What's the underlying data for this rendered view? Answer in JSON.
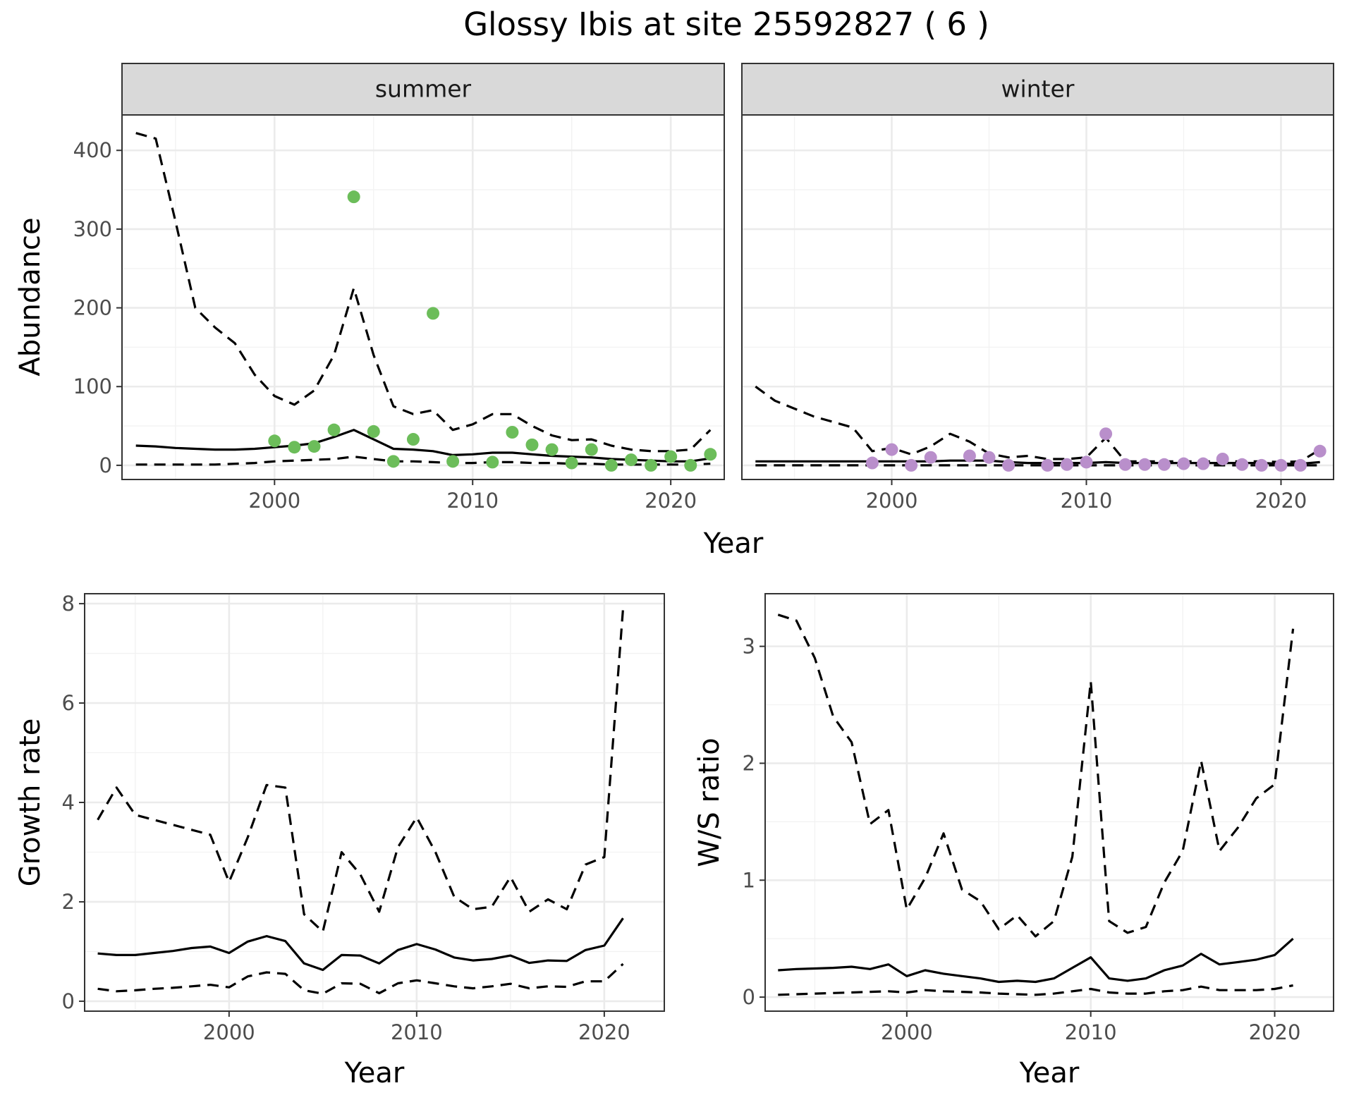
{
  "title": "Glossy Ibis at site 25592827 ( 6 )",
  "colors": {
    "summer": "#6cbd5a",
    "winter": "#b98fcb"
  },
  "chart_data": [
    {
      "type": "line",
      "panel": "summer",
      "strip": "summer",
      "xlabel": "",
      "ylabel": "Abundance",
      "xlim": [
        1992.3,
        2022.7
      ],
      "ylim": [
        -18,
        445
      ],
      "xticks": [
        2000,
        2010,
        2020
      ],
      "yticks": [
        0,
        100,
        200,
        300,
        400
      ],
      "grid": true,
      "series": [
        {
          "style": "solid",
          "x": [
            1993,
            1994,
            1995,
            1996,
            1997,
            1998,
            1999,
            2000,
            2001,
            2002,
            2003,
            2004,
            2005,
            2006,
            2007,
            2008,
            2009,
            2010,
            2011,
            2012,
            2013,
            2014,
            2015,
            2016,
            2017,
            2018,
            2019,
            2020,
            2021,
            2022
          ],
          "y": [
            25,
            24,
            22,
            21,
            20,
            20,
            21,
            23,
            25,
            28,
            36,
            45,
            33,
            21,
            20,
            18,
            13,
            14,
            16,
            16,
            14,
            12,
            11,
            10,
            8,
            7,
            6,
            5,
            5,
            9
          ]
        },
        {
          "style": "dashed",
          "x": [
            1993,
            1994,
            1995,
            1996,
            1997,
            1998,
            1999,
            2000,
            2001,
            2002,
            2003,
            2004,
            2005,
            2006,
            2007,
            2008,
            2009,
            2010,
            2011,
            2012,
            2013,
            2014,
            2015,
            2016,
            2017,
            2018,
            2019,
            2020,
            2021,
            2022
          ],
          "y": [
            422,
            415,
            310,
            200,
            175,
            155,
            115,
            88,
            77,
            95,
            140,
            225,
            140,
            75,
            65,
            70,
            45,
            52,
            65,
            65,
            50,
            38,
            32,
            33,
            25,
            20,
            18,
            18,
            20,
            45
          ]
        },
        {
          "style": "dashed",
          "x": [
            1993,
            1994,
            1995,
            1996,
            1997,
            1998,
            1999,
            2000,
            2001,
            2002,
            2003,
            2004,
            2005,
            2006,
            2007,
            2008,
            2009,
            2010,
            2011,
            2012,
            2013,
            2014,
            2015,
            2016,
            2017,
            2018,
            2019,
            2020,
            2021,
            2022
          ],
          "y": [
            1,
            1,
            1,
            1,
            1,
            2,
            3,
            5,
            6,
            7,
            8,
            11,
            8,
            5,
            5,
            4,
            3,
            3,
            4,
            4,
            3,
            3,
            2,
            2,
            1,
            1,
            1,
            1,
            1,
            2
          ]
        },
        {
          "style": "points",
          "color": "#6cbd5a",
          "x": [
            2000,
            2001,
            2002,
            2003,
            2004,
            2005,
            2006,
            2007,
            2008,
            2009,
            2011,
            2012,
            2013,
            2014,
            2015,
            2016,
            2017,
            2018,
            2019,
            2020,
            2021,
            2022
          ],
          "y": [
            31,
            23,
            24,
            45,
            341,
            43,
            5,
            33,
            193,
            5,
            4,
            42,
            26,
            20,
            3,
            20,
            0,
            7,
            0,
            11,
            0,
            14
          ]
        }
      ]
    },
    {
      "type": "line",
      "panel": "winter",
      "strip": "winter",
      "xlabel": "",
      "ylabel": "",
      "xlim": [
        1992.3,
        2022.7
      ],
      "ylim": [
        -18,
        445
      ],
      "xticks": [
        2000,
        2010,
        2020
      ],
      "yticks": [
        0,
        100,
        200,
        300,
        400
      ],
      "grid": true,
      "series": [
        {
          "style": "solid",
          "x": [
            1993,
            1994,
            1995,
            1996,
            1997,
            1998,
            1999,
            2000,
            2001,
            2002,
            2003,
            2004,
            2005,
            2006,
            2007,
            2008,
            2009,
            2010,
            2011,
            2012,
            2013,
            2014,
            2015,
            2016,
            2017,
            2018,
            2019,
            2020,
            2021,
            2022
          ],
          "y": [
            5,
            5,
            5,
            5,
            5,
            5,
            5,
            5,
            5,
            5,
            6,
            6,
            6,
            4,
            3,
            3,
            3,
            3,
            4,
            3,
            3,
            3,
            3,
            3,
            3,
            3,
            3,
            2,
            2,
            4
          ]
        },
        {
          "style": "dashed",
          "x": [
            1993,
            1994,
            1995,
            1996,
            1997,
            1998,
            1999,
            2000,
            2001,
            2002,
            2003,
            2004,
            2005,
            2006,
            2007,
            2008,
            2009,
            2010,
            2011,
            2012,
            2013,
            2014,
            2015,
            2016,
            2017,
            2018,
            2019,
            2020,
            2021,
            2022
          ],
          "y": [
            100,
            82,
            72,
            62,
            55,
            48,
            18,
            22,
            14,
            24,
            40,
            30,
            15,
            10,
            12,
            8,
            8,
            10,
            35,
            5,
            5,
            5,
            5,
            5,
            5,
            5,
            5,
            4,
            5,
            20
          ]
        },
        {
          "style": "dashed",
          "x": [
            1993,
            1994,
            1995,
            1996,
            1997,
            1998,
            1999,
            2000,
            2001,
            2002,
            2003,
            2004,
            2005,
            2006,
            2007,
            2008,
            2009,
            2010,
            2011,
            2012,
            2013,
            2014,
            2015,
            2016,
            2017,
            2018,
            2019,
            2020,
            2021,
            2022
          ],
          "y": [
            0,
            0,
            0,
            0,
            0,
            0,
            0,
            0,
            0,
            0,
            0,
            0,
            0,
            0,
            0,
            0,
            0,
            0,
            0,
            0,
            0,
            0,
            0,
            0,
            0,
            0,
            0,
            0,
            0,
            0
          ]
        },
        {
          "style": "points",
          "color": "#b98fcb",
          "x": [
            1999,
            2000,
            2001,
            2002,
            2004,
            2005,
            2006,
            2008,
            2009,
            2010,
            2011,
            2012,
            2013,
            2014,
            2015,
            2016,
            2017,
            2018,
            2019,
            2020,
            2021,
            2022
          ],
          "y": [
            3,
            20,
            0,
            10,
            12,
            10,
            0,
            0,
            1,
            4,
            40,
            1,
            1,
            1,
            2,
            2,
            8,
            1,
            0,
            0,
            0,
            18
          ]
        }
      ]
    },
    {
      "type": "line",
      "panel": "growth",
      "xlabel": "Year",
      "ylabel": "Growth rate",
      "xlim": [
        1992.3,
        2023.2
      ],
      "ylim": [
        -0.2,
        8.2
      ],
      "xticks": [
        2000,
        2010,
        2020
      ],
      "yticks": [
        0,
        2,
        4,
        6,
        8
      ],
      "grid": true,
      "series": [
        {
          "style": "solid",
          "x": [
            1993,
            1994,
            1995,
            1996,
            1997,
            1998,
            1999,
            2000,
            2001,
            2002,
            2003,
            2004,
            2005,
            2006,
            2007,
            2008,
            2009,
            2010,
            2011,
            2012,
            2013,
            2014,
            2015,
            2016,
            2017,
            2018,
            2019,
            2020,
            2021
          ],
          "y": [
            0.96,
            0.93,
            0.93,
            0.97,
            1.01,
            1.07,
            1.1,
            0.97,
            1.2,
            1.31,
            1.21,
            0.76,
            0.63,
            0.93,
            0.92,
            0.76,
            1.03,
            1.15,
            1.04,
            0.88,
            0.82,
            0.85,
            0.92,
            0.77,
            0.82,
            0.81,
            1.03,
            1.12,
            1.67
          ]
        },
        {
          "style": "dashed",
          "x": [
            1993,
            1994,
            1995,
            1996,
            1997,
            1998,
            1999,
            2000,
            2001,
            2002,
            2003,
            2004,
            2005,
            2006,
            2007,
            2008,
            2009,
            2010,
            2011,
            2012,
            2013,
            2014,
            2015,
            2016,
            2017,
            2018,
            2019,
            2020,
            2021
          ],
          "y": [
            3.65,
            4.3,
            3.75,
            3.65,
            3.55,
            3.45,
            3.35,
            2.4,
            3.3,
            4.35,
            4.3,
            1.75,
            1.4,
            3.0,
            2.55,
            1.8,
            3.1,
            3.7,
            3.0,
            2.1,
            1.85,
            1.9,
            2.5,
            1.8,
            2.05,
            1.85,
            2.75,
            2.9,
            7.9
          ]
        },
        {
          "style": "dashed",
          "x": [
            1993,
            1994,
            1995,
            1996,
            1997,
            1998,
            1999,
            2000,
            2001,
            2002,
            2003,
            2004,
            2005,
            2006,
            2007,
            2008,
            2009,
            2010,
            2011,
            2012,
            2013,
            2014,
            2015,
            2016,
            2017,
            2018,
            2019,
            2020,
            2021
          ],
          "y": [
            0.25,
            0.2,
            0.22,
            0.25,
            0.27,
            0.3,
            0.33,
            0.28,
            0.5,
            0.58,
            0.55,
            0.22,
            0.15,
            0.36,
            0.35,
            0.16,
            0.36,
            0.42,
            0.36,
            0.3,
            0.26,
            0.3,
            0.35,
            0.26,
            0.3,
            0.29,
            0.4,
            0.4,
            0.75
          ]
        }
      ]
    },
    {
      "type": "line",
      "panel": "ratio",
      "xlabel": "Year",
      "ylabel": "W/S ratio",
      "xlim": [
        1992.3,
        2023.2
      ],
      "ylim": [
        -0.12,
        3.45
      ],
      "xticks": [
        2000,
        2010,
        2020
      ],
      "yticks": [
        0,
        1,
        2,
        3
      ],
      "grid": true,
      "series": [
        {
          "style": "solid",
          "x": [
            1993,
            1994,
            1995,
            1996,
            1997,
            1998,
            1999,
            2000,
            2001,
            2002,
            2003,
            2004,
            2005,
            2006,
            2007,
            2008,
            2009,
            2010,
            2011,
            2012,
            2013,
            2014,
            2015,
            2016,
            2017,
            2018,
            2019,
            2020,
            2021
          ],
          "y": [
            0.23,
            0.24,
            0.245,
            0.25,
            0.26,
            0.24,
            0.28,
            0.18,
            0.23,
            0.2,
            0.18,
            0.16,
            0.13,
            0.14,
            0.13,
            0.16,
            0.25,
            0.34,
            0.16,
            0.14,
            0.16,
            0.23,
            0.27,
            0.37,
            0.28,
            0.3,
            0.32,
            0.36,
            0.5
          ]
        },
        {
          "style": "dashed",
          "x": [
            1993,
            1994,
            1995,
            1996,
            1997,
            1998,
            1999,
            2000,
            2001,
            2002,
            2003,
            2004,
            2005,
            2006,
            2007,
            2008,
            2009,
            2010,
            2011,
            2012,
            2013,
            2014,
            2015,
            2016,
            2017,
            2018,
            2019,
            2020,
            2021
          ],
          "y": [
            3.27,
            3.22,
            2.9,
            2.4,
            2.18,
            1.48,
            1.6,
            0.75,
            1.02,
            1.4,
            0.92,
            0.82,
            0.58,
            0.7,
            0.52,
            0.65,
            1.2,
            2.7,
            0.65,
            0.55,
            0.6,
            0.98,
            1.25,
            2.02,
            1.25,
            1.45,
            1.7,
            1.82,
            3.15
          ]
        },
        {
          "style": "dashed",
          "x": [
            1993,
            1994,
            1995,
            1996,
            1997,
            1998,
            1999,
            2000,
            2001,
            2002,
            2003,
            2004,
            2005,
            2006,
            2007,
            2008,
            2009,
            2010,
            2011,
            2012,
            2013,
            2014,
            2015,
            2016,
            2017,
            2018,
            2019,
            2020,
            2021
          ],
          "y": [
            0.02,
            0.025,
            0.03,
            0.035,
            0.04,
            0.045,
            0.05,
            0.04,
            0.06,
            0.05,
            0.045,
            0.04,
            0.03,
            0.025,
            0.02,
            0.03,
            0.05,
            0.07,
            0.04,
            0.03,
            0.03,
            0.05,
            0.06,
            0.09,
            0.06,
            0.06,
            0.06,
            0.07,
            0.1
          ]
        }
      ]
    }
  ],
  "shared_xlabel": "Year"
}
